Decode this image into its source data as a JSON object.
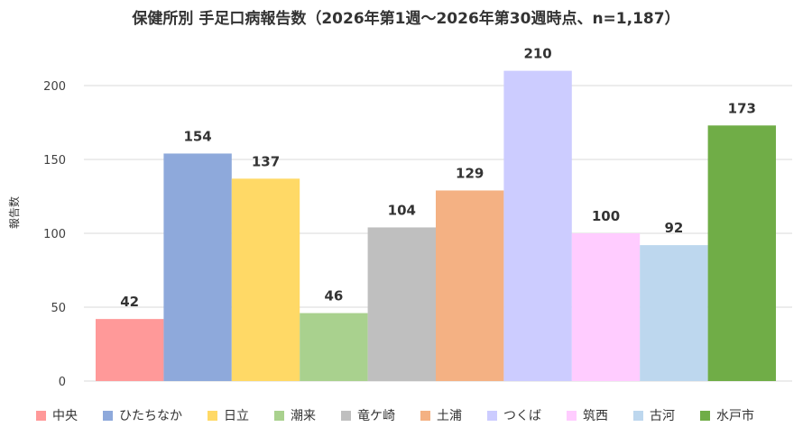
{
  "chart_data": {
    "type": "bar",
    "title": "保健所別 手足口病報告数（2026年第1週～2026年第30週時点、n=1,187）",
    "ylabel": "報告数",
    "ylim": [
      0,
      200
    ],
    "yticks": [
      0,
      50,
      100,
      150,
      200
    ],
    "grid": true,
    "legend_position": "bottom",
    "categories": [
      "中央",
      "ひたちなか",
      "日立",
      "潮来",
      "竜ケ崎",
      "土浦",
      "つくば",
      "筑西",
      "古河",
      "水戸市"
    ],
    "values": [
      42,
      154,
      137,
      46,
      104,
      129,
      210,
      100,
      92,
      173
    ],
    "colors": [
      "#FF9999",
      "#8EA9DB",
      "#FFD966",
      "#A9D18E",
      "#BFBFBF",
      "#F4B183",
      "#CCCCFF",
      "#FFCCFF",
      "#BDD7EE",
      "#70AD47"
    ]
  }
}
